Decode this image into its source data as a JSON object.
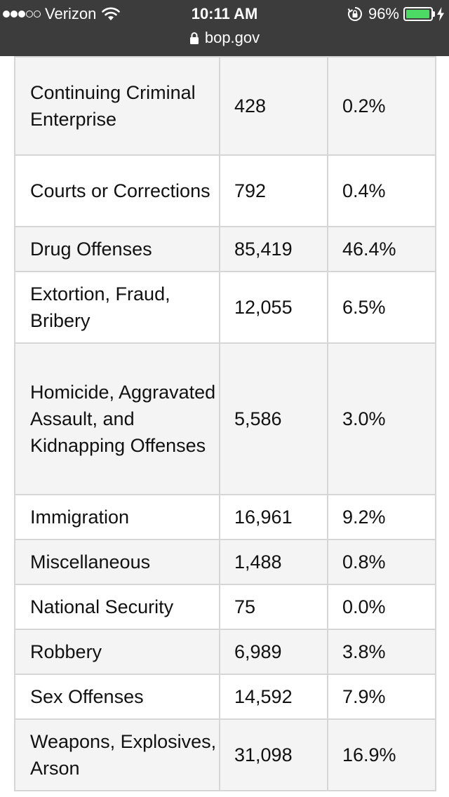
{
  "status_bar": {
    "carrier": "Verizon",
    "time": "10:11 AM",
    "battery_percent": "96%",
    "battery_level": 0.96,
    "signal_bars_filled": 3,
    "signal_bars_total": 5,
    "battery_color": "#4cd964",
    "url": "bop.gov"
  },
  "table": {
    "rows": [
      {
        "offense": "Continuing Criminal Enterprise",
        "count": "428",
        "percent": "0.2%"
      },
      {
        "offense": "Courts or Corrections",
        "count": "792",
        "percent": "0.4%"
      },
      {
        "offense": "Drug Offenses",
        "count": "85,419",
        "percent": "46.4%"
      },
      {
        "offense": "Extortion, Fraud, Bribery",
        "count": "12,055",
        "percent": "6.5%"
      },
      {
        "offense": "Homicide, Aggravated Assault, and Kidnapping Offenses",
        "count": "5,586",
        "percent": "3.0%"
      },
      {
        "offense": "Immigration",
        "count": "16,961",
        "percent": "9.2%"
      },
      {
        "offense": "Miscellaneous",
        "count": "1,488",
        "percent": "0.8%"
      },
      {
        "offense": "National Security",
        "count": "75",
        "percent": "0.0%"
      },
      {
        "offense": "Robbery",
        "count": "6,989",
        "percent": "3.8%"
      },
      {
        "offense": "Sex Offenses",
        "count": "14,592",
        "percent": "7.9%"
      },
      {
        "offense": "Weapons, Explosives, Arson",
        "count": "31,098",
        "percent": "16.9%"
      }
    ]
  }
}
